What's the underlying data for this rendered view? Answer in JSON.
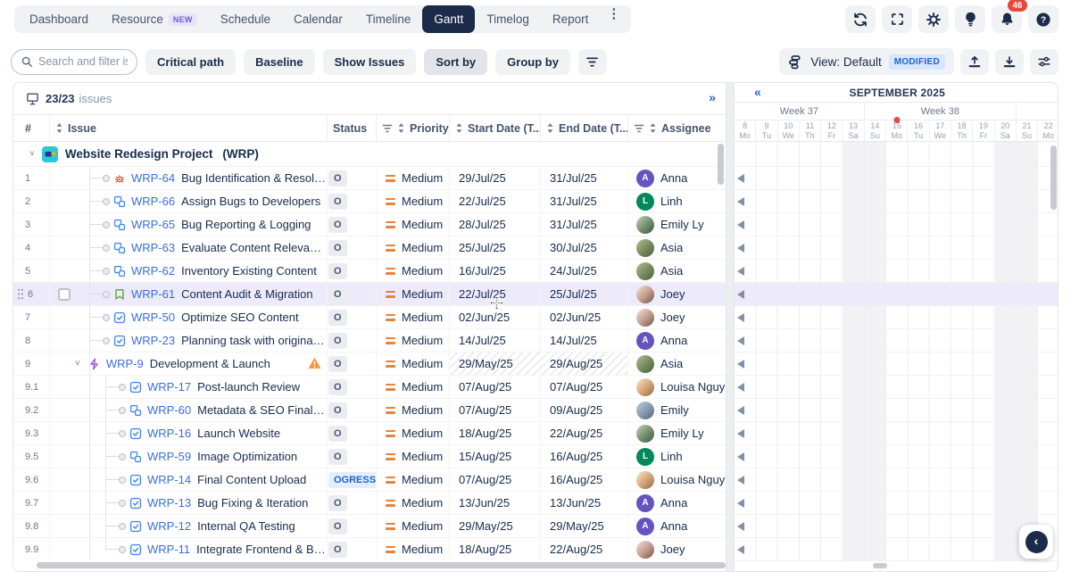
{
  "nav": {
    "items": [
      {
        "label": "Dashboard"
      },
      {
        "label": "Resource",
        "badge": "NEW"
      },
      {
        "label": "Schedule"
      },
      {
        "label": "Calendar"
      },
      {
        "label": "Timeline"
      },
      {
        "label": "Gantt",
        "active": true
      },
      {
        "label": "Timelog"
      },
      {
        "label": "Report"
      }
    ],
    "overflow_icon": "kebab-menu-icon"
  },
  "header_actions": [
    {
      "name": "refresh",
      "icon": "refresh-icon"
    },
    {
      "name": "fullscreen",
      "icon": "fullscreen-icon"
    },
    {
      "name": "settings",
      "icon": "gear-icon"
    },
    {
      "name": "tips",
      "icon": "idea-icon"
    },
    {
      "name": "notifications",
      "icon": "bell-icon",
      "badge": "46"
    },
    {
      "name": "help",
      "icon": "help-icon"
    }
  ],
  "toolbar": {
    "search_placeholder": "Search and filter issue",
    "buttons": [
      {
        "label": "Critical path"
      },
      {
        "label": "Baseline"
      },
      {
        "label": "Show Issues"
      },
      {
        "label": "Sort by",
        "pressed": true
      },
      {
        "label": "Group by"
      }
    ],
    "view": {
      "label": "View: Default",
      "badge": "MODIFIED"
    }
  },
  "table": {
    "count": "23/23",
    "count_suffix": "issues",
    "expand_icon": "»",
    "columns": [
      {
        "label": "#"
      },
      {
        "label": "Issue",
        "sort": true
      },
      {
        "label": "Status"
      },
      {
        "label": "Priority",
        "filter": true,
        "sort": true
      },
      {
        "label": "Start Date (T...",
        "sort": true
      },
      {
        "label": "End Date (T...",
        "sort": true
      },
      {
        "label": "Assignee",
        "filter": true,
        "sort": true
      }
    ],
    "project": {
      "name": "Website Redesign Project",
      "key": "(WRP)",
      "expanded": true
    },
    "rows": [
      {
        "num": "1",
        "key": "WRP-64",
        "summary": "Bug Identification & Resolution",
        "type": "bug",
        "level": 1,
        "status": {
          "text": "O",
          "kind": "todo"
        },
        "priority": "Medium",
        "start": "29/Jul/25",
        "end": "31/Jul/25",
        "assignee": {
          "name": "Anna",
          "avatar": "anna",
          "initial": "A"
        }
      },
      {
        "num": "2",
        "key": "WRP-66",
        "summary": "Assign Bugs to Developers",
        "type": "subtask",
        "level": 1,
        "status": {
          "text": "O",
          "kind": "todo"
        },
        "priority": "Medium",
        "start": "22/Jul/25",
        "end": "31/Jul/25",
        "assignee": {
          "name": "Linh",
          "avatar": "linh",
          "initial": "L"
        }
      },
      {
        "num": "3",
        "key": "WRP-65",
        "summary": "Bug Reporting & Logging",
        "type": "subtask",
        "level": 1,
        "status": {
          "text": "O",
          "kind": "todo"
        },
        "priority": "Medium",
        "start": "28/Jul/25",
        "end": "31/Jul/25",
        "assignee": {
          "name": "Emily Ly",
          "avatar": "emily-ly"
        }
      },
      {
        "num": "4",
        "key": "WRP-63",
        "summary": "Evaluate Content Relevance",
        "type": "subtask",
        "level": 1,
        "status": {
          "text": "O",
          "kind": "todo"
        },
        "priority": "Medium",
        "start": "25/Jul/25",
        "end": "30/Jul/25",
        "assignee": {
          "name": "Asia",
          "avatar": "asia"
        }
      },
      {
        "num": "5",
        "key": "WRP-62",
        "summary": "Inventory Existing Content",
        "type": "subtask",
        "level": 1,
        "status": {
          "text": "O",
          "kind": "todo"
        },
        "priority": "Medium",
        "start": "16/Jul/25",
        "end": "24/Jul/25",
        "assignee": {
          "name": "Asia",
          "avatar": "asia"
        }
      },
      {
        "num": "6",
        "key": "WRP-61",
        "summary": "Content Audit & Migration",
        "type": "story",
        "level": 1,
        "selected": true,
        "drag_handle": true,
        "checkbox": true,
        "status": {
          "text": "O",
          "kind": "todo"
        },
        "priority": "Medium",
        "start": "22/Jul/25",
        "end": "25/Jul/25",
        "assignee": {
          "name": "Joey",
          "avatar": "joey"
        }
      },
      {
        "num": "7",
        "key": "WRP-50",
        "summary": "Optimize SEO Content",
        "type": "task",
        "level": 1,
        "status": {
          "text": "O",
          "kind": "todo"
        },
        "priority": "Medium",
        "start": "02/Jun/25",
        "end": "02/Jun/25",
        "assignee": {
          "name": "Joey",
          "avatar": "joey"
        }
      },
      {
        "num": "8",
        "key": "WRP-23",
        "summary": "Planning task with original estimate",
        "type": "task",
        "level": 1,
        "status": {
          "text": "O",
          "kind": "todo"
        },
        "priority": "Medium",
        "start": "14/Jul/25",
        "end": "14/Jul/25",
        "assignee": {
          "name": "Anna",
          "avatar": "anna",
          "initial": "A"
        }
      },
      {
        "num": "9",
        "key": "WRP-9",
        "summary": "Development & Launch",
        "type": "epic",
        "level": 1,
        "expanded": true,
        "warning": true,
        "hatched_dates": true,
        "status": {
          "text": "O",
          "kind": "todo"
        },
        "priority": "Medium",
        "start": "29/May/25",
        "end": "29/Aug/25",
        "assignee": {
          "name": "Asia",
          "avatar": "asia"
        }
      },
      {
        "num": "9.1",
        "key": "WRP-17",
        "summary": "Post-launch Review",
        "type": "task",
        "level": 2,
        "status": {
          "text": "O",
          "kind": "todo"
        },
        "priority": "Medium",
        "start": "07/Aug/25",
        "end": "07/Aug/25",
        "assignee": {
          "name": "Louisa Nguy",
          "avatar": "louisa"
        }
      },
      {
        "num": "9.2",
        "key": "WRP-60",
        "summary": "Metadata & SEO Finalization",
        "type": "subtask",
        "level": 2,
        "status": {
          "text": "O",
          "kind": "todo"
        },
        "priority": "Medium",
        "start": "07/Aug/25",
        "end": "09/Aug/25",
        "assignee": {
          "name": "Emily",
          "avatar": "emily"
        }
      },
      {
        "num": "9.3",
        "key": "WRP-16",
        "summary": "Launch Website",
        "type": "task",
        "level": 2,
        "status": {
          "text": "O",
          "kind": "todo"
        },
        "priority": "Medium",
        "start": "18/Aug/25",
        "end": "22/Aug/25",
        "assignee": {
          "name": "Emily Ly",
          "avatar": "emily-ly"
        }
      },
      {
        "num": "9.5",
        "key": "WRP-59",
        "summary": "Image Optimization",
        "type": "subtask",
        "level": 2,
        "status": {
          "text": "O",
          "kind": "todo"
        },
        "priority": "Medium",
        "start": "15/Aug/25",
        "end": "16/Aug/25",
        "assignee": {
          "name": "Linh",
          "avatar": "linh",
          "initial": "L"
        }
      },
      {
        "num": "9.6",
        "key": "WRP-14",
        "summary": "Final Content Upload",
        "type": "task",
        "level": 2,
        "status": {
          "text": "OGRESS",
          "kind": "inprogress"
        },
        "priority": "Medium",
        "start": "07/Aug/25",
        "end": "16/Aug/25",
        "assignee": {
          "name": "Louisa Nguy",
          "avatar": "louisa"
        }
      },
      {
        "num": "9.7",
        "key": "WRP-13",
        "summary": "Bug Fixing & Iteration",
        "type": "task",
        "level": 2,
        "status": {
          "text": "O",
          "kind": "todo"
        },
        "priority": "Medium",
        "start": "13/Jun/25",
        "end": "13/Jun/25",
        "assignee": {
          "name": "Anna",
          "avatar": "anna",
          "initial": "A"
        }
      },
      {
        "num": "9.8",
        "key": "WRP-12",
        "summary": "Internal QA Testing",
        "type": "task",
        "level": 2,
        "status": {
          "text": "O",
          "kind": "todo"
        },
        "priority": "Medium",
        "start": "29/May/25",
        "end": "29/May/25",
        "assignee": {
          "name": "Anna",
          "avatar": "anna",
          "initial": "A"
        }
      },
      {
        "num": "9.9",
        "key": "WRP-11",
        "summary": "Integrate Frontend & Backend",
        "type": "task",
        "level": 2,
        "status": {
          "text": "O",
          "kind": "todo"
        },
        "priority": "Medium",
        "start": "18/Aug/25",
        "end": "22/Aug/25",
        "assignee": {
          "name": "Joey",
          "avatar": "joey"
        }
      }
    ]
  },
  "gantt": {
    "collapse_icon": "«",
    "month": "SEPTEMBER 2025",
    "weeks": [
      {
        "label": "Week 37",
        "span": 6
      },
      {
        "label": "Week 38",
        "span": 7
      },
      {
        "label": "",
        "span": 2
      }
    ],
    "days": [
      {
        "num": "8",
        "dow": "Mo"
      },
      {
        "num": "9",
        "dow": "Tu"
      },
      {
        "num": "10",
        "dow": "We"
      },
      {
        "num": "11",
        "dow": "Th"
      },
      {
        "num": "12",
        "dow": "Fr"
      },
      {
        "num": "13",
        "dow": "Sa",
        "weekend": true
      },
      {
        "num": "14",
        "dow": "Su",
        "weekend": true
      },
      {
        "num": "15",
        "dow": "Mo",
        "today": true
      },
      {
        "num": "16",
        "dow": "Tu"
      },
      {
        "num": "17",
        "dow": "We"
      },
      {
        "num": "18",
        "dow": "Th"
      },
      {
        "num": "19",
        "dow": "Fr"
      },
      {
        "num": "20",
        "dow": "Sa",
        "weekend": true
      },
      {
        "num": "21",
        "dow": "Su",
        "weekend": true
      },
      {
        "num": "22",
        "dow": "Mo"
      }
    ]
  },
  "floating_button_icon": "‹",
  "colors": {
    "accent": "#1d63d8",
    "selected_row": "#edeafa",
    "today_dot": "#e5483f",
    "warning": "#f79232",
    "nav_active": "#1c2b49",
    "badge_count": "#e5483f"
  }
}
